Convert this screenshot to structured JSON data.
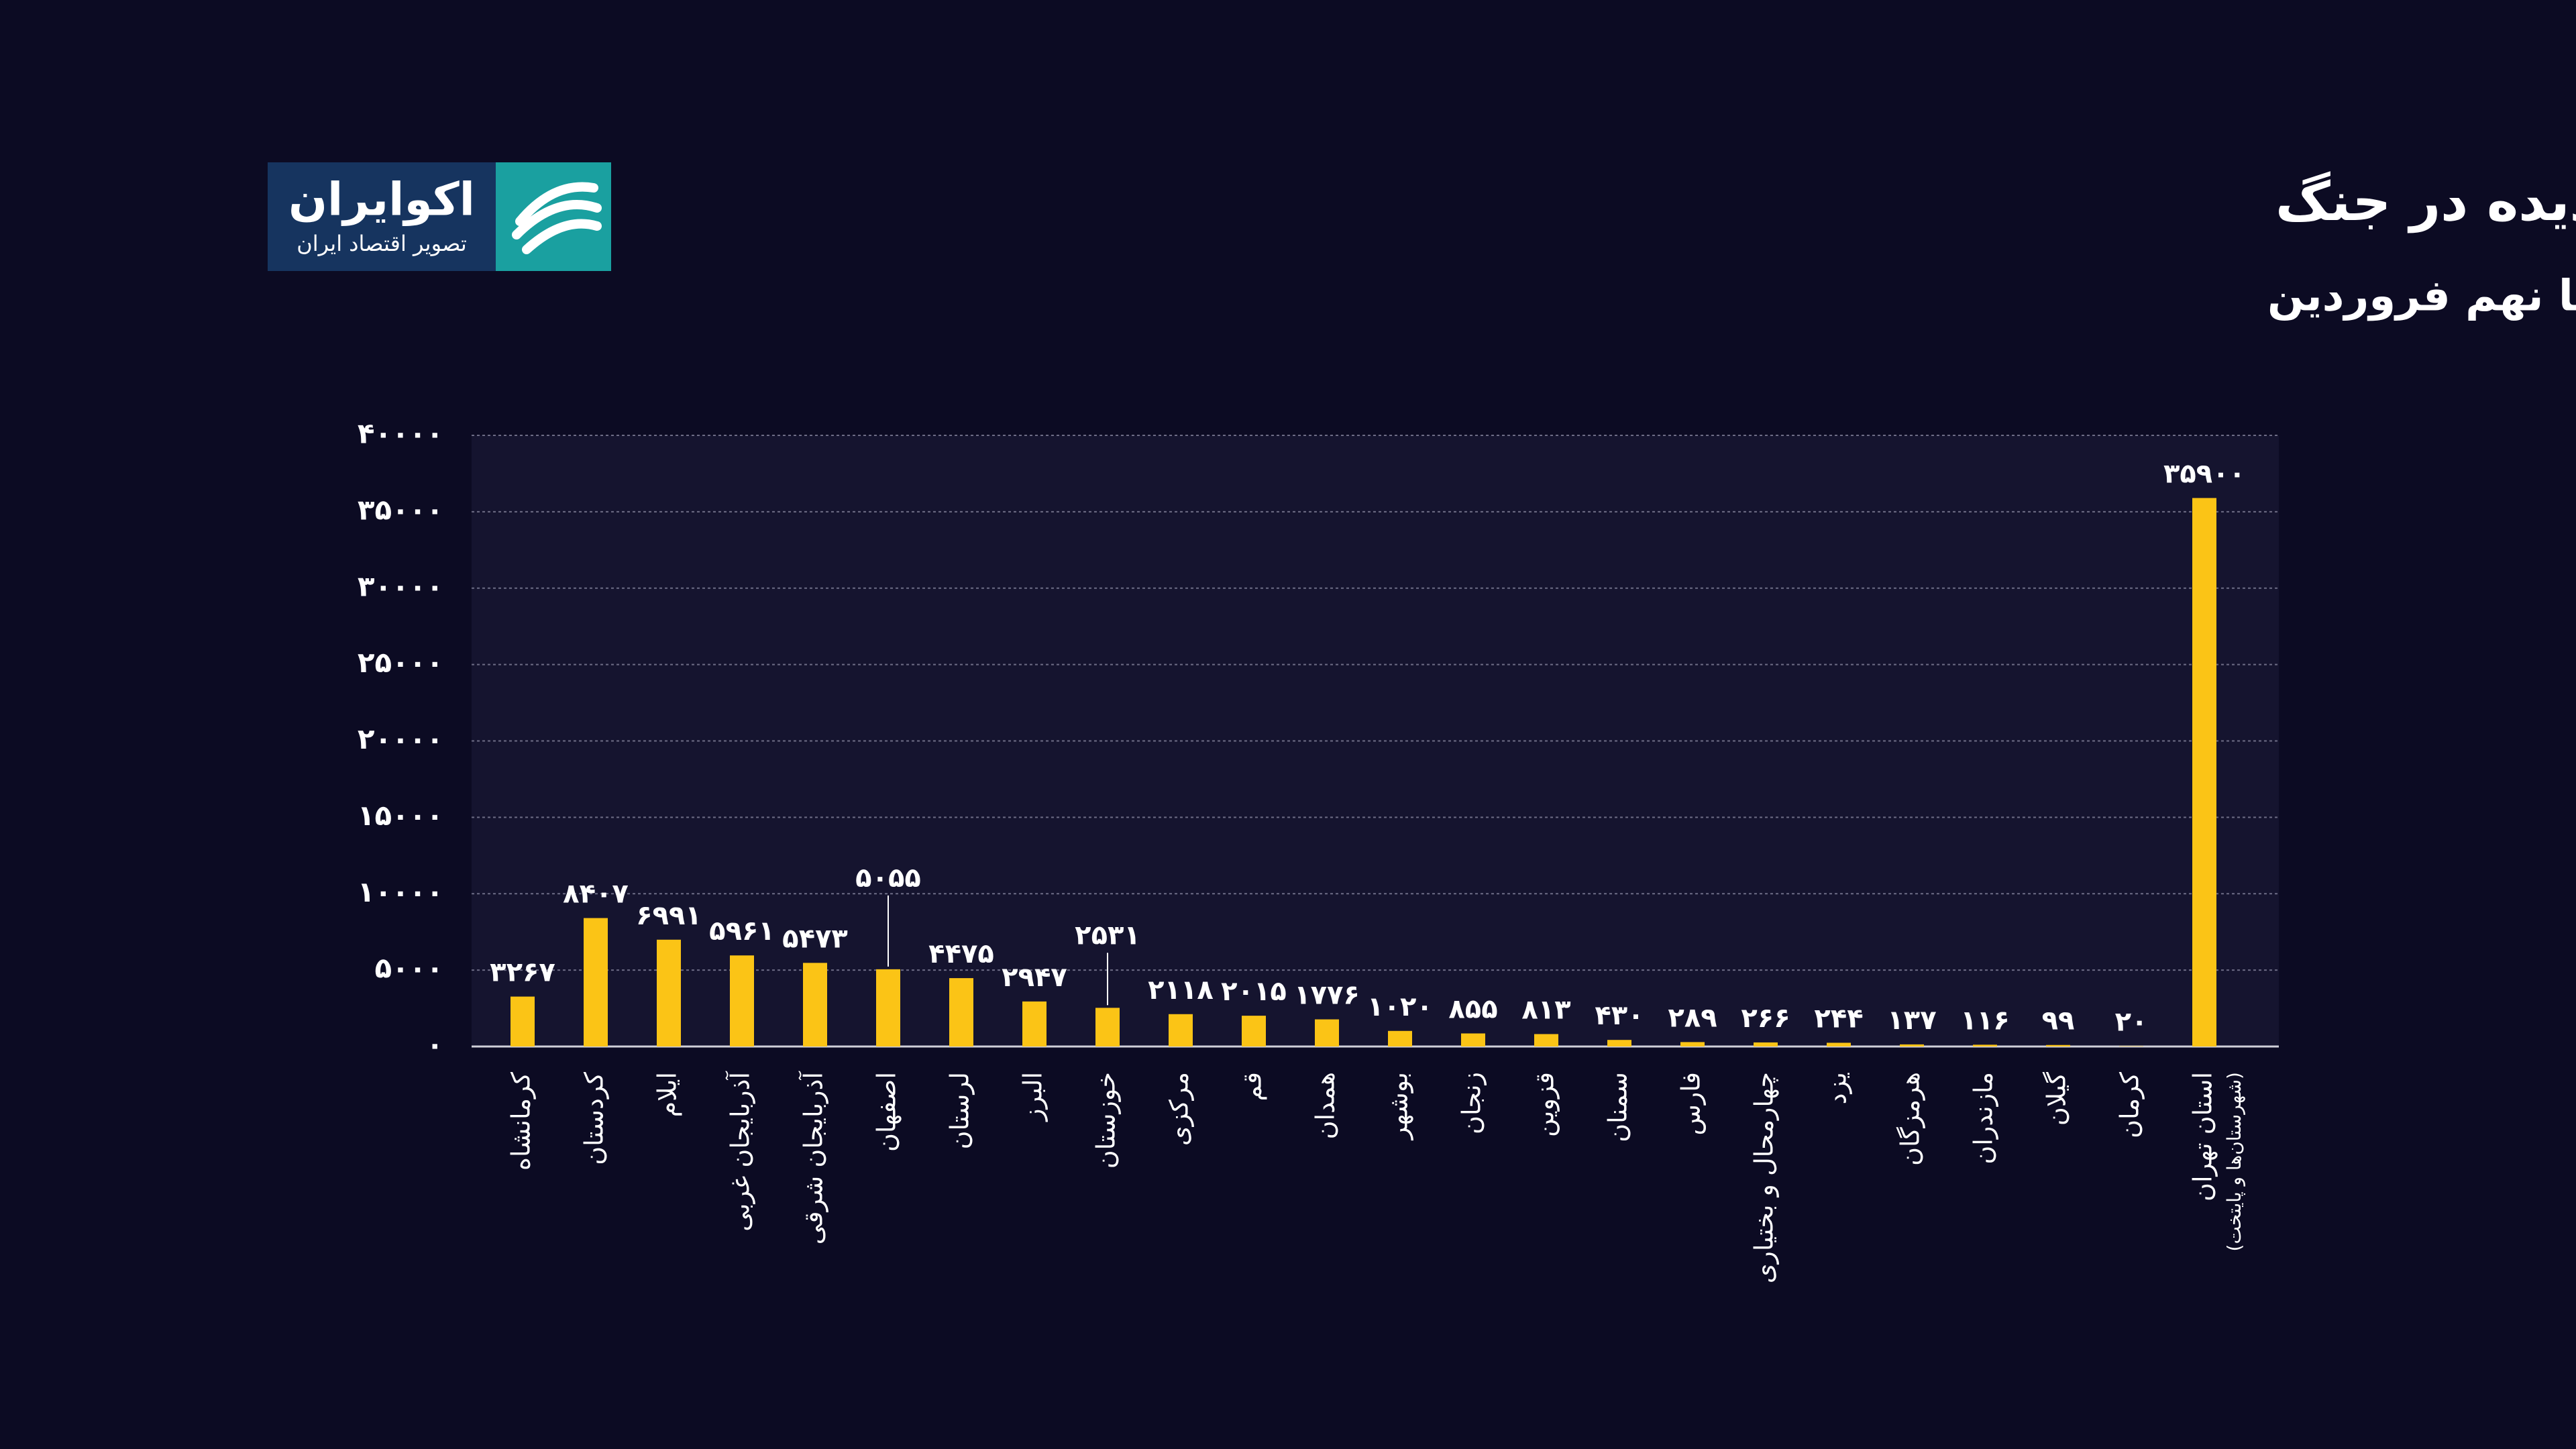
{
  "brand": {
    "name": "اکوایران",
    "tagline": "تصویر اقتصاد ایران"
  },
  "chart_data": {
    "type": "bar",
    "title": "تصویر استانی از خانه های آسیب دیده در جنگ",
    "subtitle": "اسفند تا نهم فروردین",
    "categories": [
      "کرمانشاه",
      "کردستان",
      "ایلام",
      "آذربایجان غربی",
      "آذربایجان شرقی",
      "اصفهان",
      "لرستان",
      "البرز",
      "خوزستان",
      "مرکزی",
      "قم",
      "همدان",
      "بوشهر",
      "زنجان",
      "قزوین",
      "سمنان",
      "فارس",
      "چهارمحال و بختیاری",
      "یزد",
      "هرمزگان",
      "مازندران",
      "گیلان",
      "کرمان",
      "استان تهران"
    ],
    "annotations": [
      "(شهرستان‌ها و پایتخت)"
    ],
    "values": [
      3267,
      8407,
      6991,
      5961,
      5473,
      5055,
      4475,
      2947,
      2531,
      2118,
      2015,
      1776,
      1020,
      855,
      813,
      430,
      289,
      266,
      244,
      137,
      116,
      99,
      20,
      35900
    ],
    "value_labels": [
      "۳۲۶۷",
      "۸۴۰۷",
      "۶۹۹۱",
      "۵۹۶۱",
      "۵۴۷۳",
      "۵۰۵۵",
      "۴۴۷۵",
      "۲۹۴۷",
      "۲۵۳۱",
      "۲۱۱۸",
      "۲۰۱۵",
      "۱۷۷۶",
      "۱۰۲۰",
      "۸۵۵",
      "۸۱۳",
      "۴۳۰",
      "۲۸۹",
      "۲۶۶",
      "۲۴۴",
      "۱۳۷",
      "۱۱۶",
      "۹۹",
      "۲۰",
      "۳۵۹۰۰"
    ],
    "color": "#fbc416",
    "ylim": [
      0,
      40000
    ],
    "yticks": [
      {
        "value": 0,
        "label": "۰"
      },
      {
        "value": 5000,
        "label": "۵۰۰۰"
      },
      {
        "value": 10000,
        "label": "۱۰۰۰۰"
      },
      {
        "value": 15000,
        "label": "۱۵۰۰۰"
      },
      {
        "value": 20000,
        "label": "۲۰۰۰۰"
      },
      {
        "value": 25000,
        "label": "۲۵۰۰۰"
      },
      {
        "value": 30000,
        "label": "۳۰۰۰۰"
      },
      {
        "value": 35000,
        "label": "۳۵۰۰۰"
      },
      {
        "value": 40000,
        "label": "۴۰۰۰۰"
      }
    ],
    "grid": true
  }
}
